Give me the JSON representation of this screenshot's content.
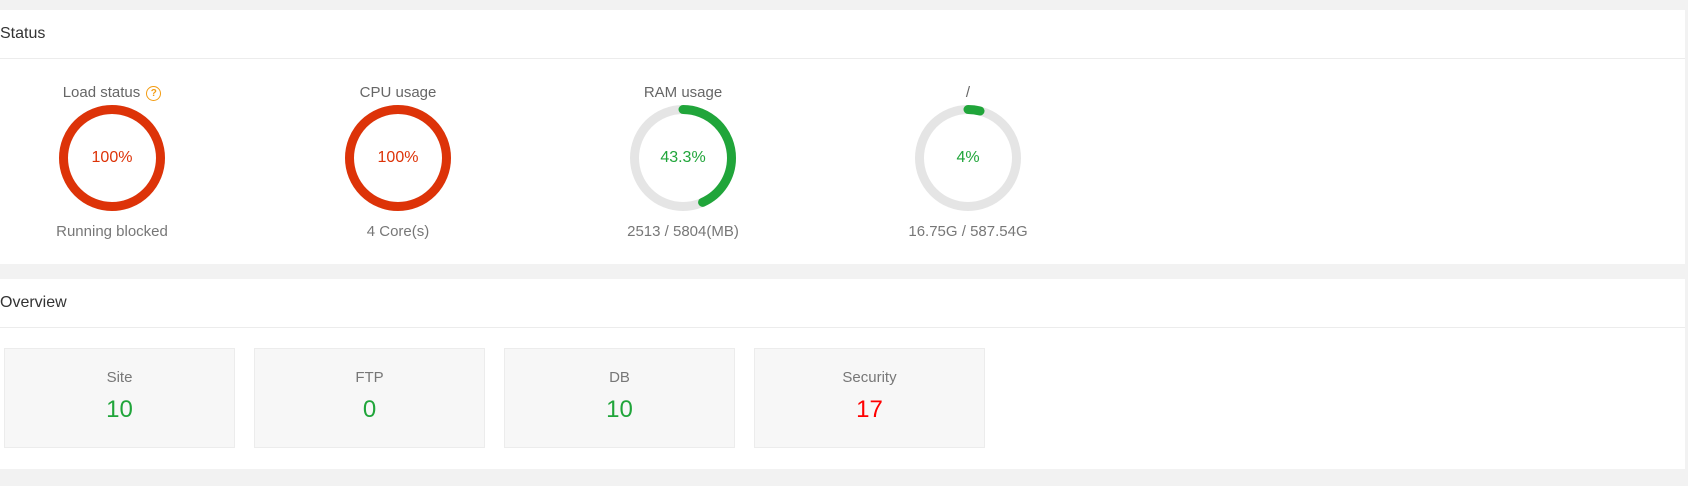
{
  "status": {
    "title": "Status",
    "gauges": [
      {
        "title": "Load status",
        "value_text": "100%",
        "fraction": 1.0,
        "color": "#dd3308",
        "sub": "Running blocked",
        "help_icon": "question-circle-icon",
        "help_glyph": "?"
      },
      {
        "title": "CPU usage",
        "value_text": "100%",
        "fraction": 1.0,
        "color": "#dd3308",
        "sub": "4 Core(s)"
      },
      {
        "title": "RAM usage",
        "value_text": "43.3%",
        "fraction": 0.433,
        "color": "#20a53a",
        "sub": "2513 / 5804(MB)"
      },
      {
        "title": "/",
        "value_text": "4%",
        "fraction": 0.04,
        "color": "#20a53a",
        "sub": "16.75G / 587.54G"
      }
    ]
  },
  "overview": {
    "title": "Overview",
    "cards": [
      {
        "label": "Site",
        "value": "10",
        "color": "#20a53a"
      },
      {
        "label": "FTP",
        "value": "0",
        "color": "#20a53a"
      },
      {
        "label": "DB",
        "value": "10",
        "color": "#20a53a"
      },
      {
        "label": "Security",
        "value": "17",
        "color": "#ff0000"
      }
    ]
  }
}
